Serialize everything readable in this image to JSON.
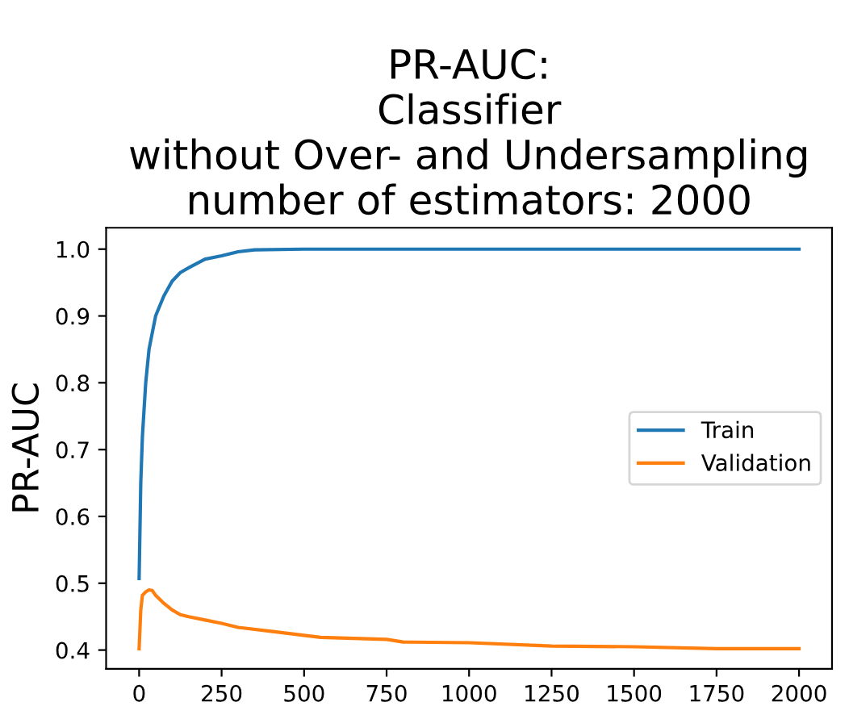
{
  "chart_data": {
    "type": "line",
    "title": "PR-AUC:\nClassifier\nwithout Over- and Undersampling\nnumber of estimators: 2000",
    "ylabel": "PR-AUC",
    "xlim": [
      -100,
      2100
    ],
    "xticks": [
      0,
      250,
      500,
      750,
      1000,
      1250,
      1500,
      1750,
      2000
    ],
    "ylim": [
      0.372,
      1.032
    ],
    "yticks": [
      0.4,
      0.5,
      0.6,
      0.7,
      0.8,
      0.9,
      {
        "value": 1.0,
        "label": "1.0"
      }
    ],
    "legend": "right",
    "grid": false,
    "series": [
      {
        "name": "Train",
        "color": "#1f77b4",
        "x": [
          0,
          5,
          10,
          20,
          30,
          50,
          75,
          100,
          125,
          150,
          200,
          250,
          300,
          350,
          500,
          2000
        ],
        "values": [
          0.507,
          0.65,
          0.72,
          0.8,
          0.85,
          0.9,
          0.93,
          0.952,
          0.965,
          0.972,
          0.985,
          0.99,
          0.996,
          0.999,
          1.0,
          1.0
        ]
      },
      {
        "name": "Validation",
        "color": "#ff7f0e",
        "x": [
          0,
          5,
          10,
          20,
          30,
          40,
          50,
          75,
          100,
          125,
          150,
          200,
          250,
          300,
          400,
          450,
          500,
          550,
          750,
          800,
          1000,
          1250,
          1500,
          1750,
          2000
        ],
        "values": [
          0.402,
          0.46,
          0.482,
          0.487,
          0.49,
          0.489,
          0.482,
          0.47,
          0.46,
          0.453,
          0.45,
          0.445,
          0.44,
          0.434,
          0.428,
          0.425,
          0.422,
          0.419,
          0.416,
          0.412,
          0.411,
          0.406,
          0.405,
          0.402,
          0.402
        ]
      }
    ]
  }
}
